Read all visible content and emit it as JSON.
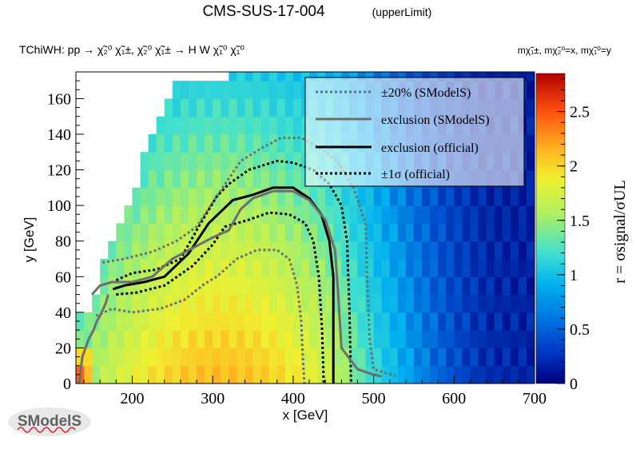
{
  "header": {
    "title": "CMS-SUS-17-004",
    "subtitle": "(upperLimit)",
    "process": "TChiWH: pp → χ̃₂⁰ χ̃₁±, χ̃₂⁰ χ̃₁± → H W χ̃₁⁰ χ̃₁⁰",
    "mass_assignment": "mχ̃₁±, mχ̃₂⁰=x, mχ̃₁⁰=y"
  },
  "logo": {
    "text": "SModelS"
  },
  "chart_data": {
    "type": "heatmap",
    "xlabel": "x [GeV]",
    "ylabel": "y [GeV]",
    "zlabel": "r = σsignal/σUL",
    "xlim": [
      130,
      700
    ],
    "ylim": [
      0,
      175
    ],
    "zlim": [
      0,
      2.85
    ],
    "x_ticks": [
      200,
      300,
      400,
      500,
      600,
      700
    ],
    "y_ticks": [
      0,
      20,
      40,
      60,
      80,
      100,
      120,
      140,
      160
    ],
    "z_ticks": [
      0,
      0.5,
      1,
      1.5,
      2,
      2.5
    ],
    "grid": false,
    "colormap": [
      "#00007f",
      "#0050d0",
      "#00b0f0",
      "#40e0d0",
      "#b0f060",
      "#f0f030",
      "#ffb020",
      "#ff5010",
      "#b00000"
    ],
    "heatmap_region": {
      "x_range": [
        130,
        700
      ],
      "cell_size": [
        10,
        10
      ],
      "upper_edge": [
        [
          130,
          35
        ],
        [
          140,
          40
        ],
        [
          150,
          50
        ],
        [
          160,
          65
        ],
        [
          170,
          75
        ],
        [
          180,
          90
        ],
        [
          190,
          100
        ],
        [
          200,
          110
        ],
        [
          210,
          125
        ],
        [
          220,
          135
        ],
        [
          230,
          145
        ],
        [
          240,
          155
        ],
        [
          250,
          165
        ],
        [
          270,
          170
        ],
        [
          320,
          175
        ],
        [
          700,
          175
        ]
      ]
    },
    "legend": {
      "position": "top-right",
      "entries": [
        {
          "label": "±20% (SModelS)",
          "style": "dotted",
          "color": "#6e6e6e"
        },
        {
          "label": "exclusion (SModelS)",
          "style": "solid",
          "color": "#6e6e6e"
        },
        {
          "label": "exclusion (official)",
          "style": "solid",
          "color": "#000000"
        },
        {
          "label": "±1σ (official)",
          "style": "dotted",
          "color": "#000000"
        }
      ]
    },
    "series": [
      {
        "name": "exclusion (official)",
        "style": "solid",
        "color": "#000000",
        "x": [
          176,
          190,
          215,
          240,
          270,
          295,
          325,
          350,
          375,
          400,
          420,
          435,
          445,
          450,
          450,
          450
        ],
        "y": [
          53,
          55,
          57,
          60,
          73,
          90,
          103,
          106,
          110,
          110,
          104,
          95,
          80,
          60,
          25,
          0
        ]
      },
      {
        "name": "±1σ (official)",
        "style": "dotted",
        "color": "#000000",
        "x": [
          180,
          200,
          230,
          260,
          285,
          305,
          320,
          345,
          380,
          400,
          425,
          445,
          460,
          467,
          470,
          472
        ],
        "y": [
          58,
          62,
          64,
          70,
          90,
          105,
          112,
          120,
          125,
          124,
          120,
          112,
          100,
          80,
          40,
          0
        ]
      },
      {
        "name": "±1σ (official)",
        "style": "dotted",
        "color": "#000000",
        "x": [
          180,
          205,
          240,
          275,
          300,
          315,
          345,
          370,
          395,
          415,
          425,
          432,
          436,
          438
        ],
        "y": [
          50,
          51,
          55,
          66,
          78,
          88,
          92,
          96,
          95,
          90,
          80,
          60,
          30,
          0
        ]
      },
      {
        "name": "exclusion (SModelS)",
        "style": "solid",
        "color": "#6e6e6e",
        "x": [
          150,
          160,
          175,
          200,
          225,
          250,
          275,
          300,
          320,
          335,
          350,
          375,
          400,
          420,
          440,
          452,
          456,
          460,
          480,
          500,
          510
        ],
        "y": [
          50,
          55,
          57,
          57,
          60,
          70,
          76,
          82,
          86,
          98,
          104,
          108,
          108,
          103,
          92,
          75,
          50,
          20,
          8,
          5,
          4
        ]
      },
      {
        "name": "±20% (SModelS)",
        "style": "dotted",
        "color": "#6e6e6e",
        "x": [
          163,
          190,
          225,
          255,
          280,
          305,
          335,
          360,
          385,
          410,
          430,
          455,
          475,
          490,
          492,
          495,
          500,
          530
        ],
        "y": [
          68,
          70,
          74,
          80,
          88,
          105,
          125,
          132,
          138,
          138,
          133,
          125,
          110,
          90,
          60,
          25,
          8,
          4
        ]
      },
      {
        "name": "±20% (SModelS)",
        "style": "dotted",
        "color": "#6e6e6e",
        "x": [
          155,
          175,
          200,
          235,
          265,
          290,
          305,
          330,
          355,
          380,
          395,
          405,
          410,
          412,
          414
        ],
        "y": [
          38,
          42,
          40,
          42,
          47,
          56,
          60,
          70,
          75,
          75,
          70,
          55,
          35,
          15,
          0
        ]
      },
      {
        "name": "exclusion (SModelS)",
        "style": "solid",
        "color": "#6e6e6e",
        "x": [
          134,
          138,
          146,
          152,
          156,
          160,
          162,
          167,
          170
        ],
        "y": [
          0,
          15,
          25,
          30,
          35,
          38,
          40,
          45,
          50
        ]
      }
    ]
  }
}
